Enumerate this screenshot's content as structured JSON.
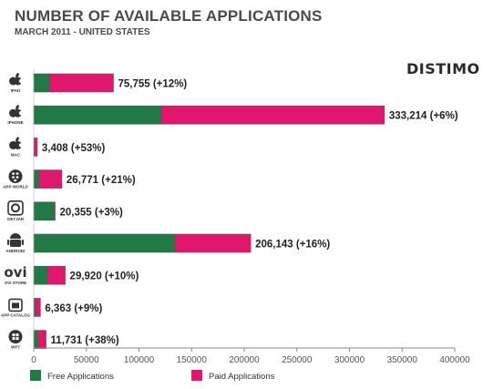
{
  "chart_data": {
    "type": "bar",
    "stacked": true,
    "orientation": "horizontal",
    "title": "NUMBER OF AVAILABLE APPLICATIONS",
    "subtitle": "MARCH 2011 - UNITED STATES",
    "brand": "DISTIMO",
    "categories": [
      "iPad",
      "iPhone",
      "Mac",
      "App World",
      "GetJar",
      "Android",
      "Ovi Store",
      "App Catalog",
      "WP7"
    ],
    "category_labels": [
      "IPAD",
      "IPHONE",
      "MAC",
      "APP WORLD",
      "GETJAR",
      "ANDROID",
      "OVI STORE",
      "APP CATALOG",
      "WP7"
    ],
    "icons": [
      "apple-icon",
      "apple-icon",
      "apple-icon",
      "blackberry-icon",
      "getjar-icon",
      "android-icon",
      "ovi-icon",
      "palm-icon",
      "windows-phone-icon"
    ],
    "series": [
      {
        "name": "Free Applications",
        "color": "#1f7a46",
        "values": [
          15000,
          121000,
          500,
          5000,
          19500,
          134000,
          13000,
          1500,
          4000
        ]
      },
      {
        "name": "Paid Applications",
        "color": "#e0176c",
        "values": [
          60755,
          212214,
          2908,
          21771,
          855,
          72143,
          16920,
          4863,
          7731
        ]
      }
    ],
    "totals": [
      "75,755 (+12%)",
      "333,214 (+6%)",
      "3,408 (+53%)",
      "26,771 (+21%)",
      "20,355 (+3%)",
      "206,143 (+16%)",
      "29,920 (+10%)",
      "6,363 (+9%)",
      "11,731 (+38%)"
    ],
    "xlim": [
      0,
      400000
    ],
    "xticks": [
      0,
      50000,
      100000,
      150000,
      200000,
      250000,
      300000,
      350000,
      400000
    ],
    "xtick_labels": [
      "0",
      "50000",
      "100000",
      "150000",
      "200000",
      "250000",
      "300000",
      "350000",
      "400000"
    ],
    "legend_position": "bottom-left",
    "grid": false
  }
}
